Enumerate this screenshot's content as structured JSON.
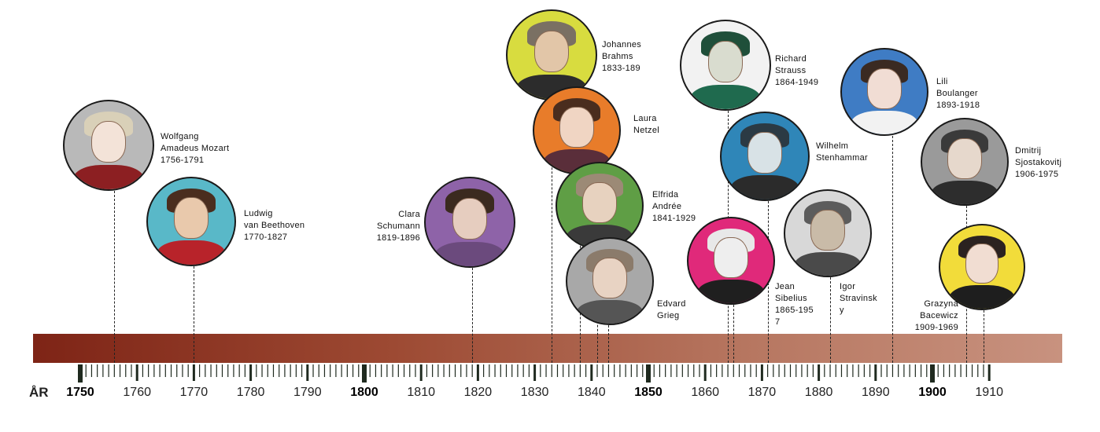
{
  "axis": {
    "prefix": "ÅR",
    "years": [
      "1750",
      "1760",
      "1770",
      "1780",
      "1790",
      "1800",
      "1810",
      "1820",
      "1830",
      "1840",
      "1850",
      "1860",
      "1870",
      "1880",
      "1890",
      "1900",
      "1910"
    ],
    "major": [
      "1750",
      "1800",
      "1850",
      "1900"
    ]
  },
  "composers": [
    {
      "id": "mozart",
      "name": "Wolfgang\nAmadeus Mozart\n1756-1791",
      "line_year": 1756,
      "bg": "#b9b9b9",
      "hair": "#d9d0b8",
      "body": "#8c1f22",
      "skin": "#f3e3d8"
    },
    {
      "id": "beethoven",
      "name": "Ludwig\nvan Beethoven\n1770-1827",
      "line_year": 1770,
      "bg": "#59b8c8",
      "hair": "#4a2d1e",
      "body": "#b8232a",
      "skin": "#e9c9ac"
    },
    {
      "id": "schumann",
      "name": "Clara\nSchumann\n1819-1896",
      "line_year": 1819,
      "bg": "#8e63a8",
      "hair": "#3b2a1f",
      "body": "#6b4a7d",
      "skin": "#e6cdbf"
    },
    {
      "id": "brahms",
      "name": "Johannes\nBrahms\n1833-189",
      "line_year": 1833,
      "bg": "#d8dc3f",
      "hair": "#7a7063",
      "body": "#2c2c2c",
      "skin": "#e2c6a8"
    },
    {
      "id": "netzel",
      "name": "Laura\nNetzel",
      "line_year": 1838,
      "bg": "#e87c2a",
      "hair": "#4a2d1e",
      "body": "#5a2e3a",
      "skin": "#f0d5c3"
    },
    {
      "id": "andree",
      "name": "Elfrida\nAndrée\n1841-1929",
      "line_year": 1841,
      "bg": "#5f9e45",
      "hair": "#9c8a76",
      "body": "#3a3a3a",
      "skin": "#e7d2bf"
    },
    {
      "id": "grieg",
      "name": "Edvard\nGrieg",
      "line_year": 1843,
      "bg": "#a8a8a8",
      "hair": "#8b7b6b",
      "body": "#555555",
      "skin": "#e8d3c3"
    },
    {
      "id": "strauss",
      "name": "Richard\nStrauss\n1864-1949",
      "line_year": 1864,
      "bg": "#f2f2f2",
      "hair": "#1f4f3a",
      "body": "#1f6a4e",
      "skin": "#d9dccf"
    },
    {
      "id": "stenhammar",
      "name": "Wilhelm\nStenhammar",
      "line_year": 1871,
      "bg": "#2f86b8",
      "hair": "#2b3a44",
      "body": "#2b2b2b",
      "skin": "#d8e2e6"
    },
    {
      "id": "sibelius",
      "name": "Jean\nSibelius\n1865-195\n7",
      "line_year": 1865,
      "bg": "#e0297a",
      "hair": "#e8e8e8",
      "body": "#1f1f1f",
      "skin": "#eeeeee"
    },
    {
      "id": "stravinsky",
      "name": "Igor\nStravinsk\ny",
      "line_year": 1882,
      "bg": "#d8d8d8",
      "hair": "#5c5c5c",
      "body": "#4a4a4a",
      "skin": "#c9bba8"
    },
    {
      "id": "boulanger",
      "name": "Lili\nBoulanger\n1893-1918",
      "line_year": 1893,
      "bg": "#3f7cc4",
      "hair": "#3a2a22",
      "body": "#f2f2f2",
      "skin": "#f1ddd4"
    },
    {
      "id": "shostakovich",
      "name": "Dmitrij\nSjostakovitj\n1906-1975",
      "line_year": 1906,
      "bg": "#9a9a9a",
      "hair": "#3a3a3a",
      "body": "#2d2d2d",
      "skin": "#e6d8cc"
    },
    {
      "id": "bacewicz",
      "name": "Grazyna\nBacewicz\n1909-1969",
      "line_year": 1909,
      "bg": "#f2dc3a",
      "hair": "#2b2220",
      "body": "#1e1e1e",
      "skin": "#f1ddd2"
    }
  ]
}
